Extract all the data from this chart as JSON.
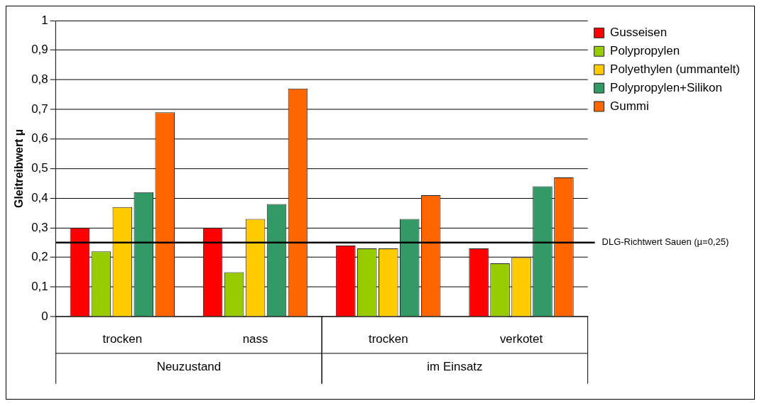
{
  "chart_data": {
    "type": "bar",
    "ylabel": "Gleitreibwert µ",
    "categories": [
      "trocken",
      "nass",
      "trocken",
      "verkotet"
    ],
    "series": [
      {
        "name": "Gusseisen",
        "color": "#ff0000",
        "values": [
          0.3,
          0.3,
          0.24,
          0.23
        ]
      },
      {
        "name": "Polypropylen",
        "color": "#99cc00",
        "values": [
          0.22,
          0.15,
          0.23,
          0.18
        ]
      },
      {
        "name": "Polyethylen (ummantelt)",
        "color": "#ffcc00",
        "values": [
          0.37,
          0.33,
          0.23,
          0.2
        ]
      },
      {
        "name": "Polypropylen+Silikon",
        "color": "#339966",
        "values": [
          0.42,
          0.38,
          0.33,
          0.44
        ]
      },
      {
        "name": "Gummi",
        "color": "#ff6600",
        "values": [
          0.69,
          0.77,
          0.41,
          0.47
        ]
      }
    ],
    "ylim": [
      0,
      1
    ],
    "yticks": [
      {
        "value": 0,
        "label": "0"
      },
      {
        "value": 0.1,
        "label": "0,1"
      },
      {
        "value": 0.2,
        "label": "0,2"
      },
      {
        "value": 0.3,
        "label": "0,3"
      },
      {
        "value": 0.4,
        "label": "0,4"
      },
      {
        "value": 0.5,
        "label": "0,5"
      },
      {
        "value": 0.6,
        "label": "0,6"
      },
      {
        "value": 0.7,
        "label": "0,7"
      },
      {
        "value": 0.8,
        "label": "0,8"
      },
      {
        "value": 0.9,
        "label": "0,9"
      },
      {
        "value": 1,
        "label": "1"
      }
    ],
    "grid": "y",
    "legend": "top right",
    "ref_lines": [
      {
        "axis": "y",
        "value": 0.25,
        "label": "DLG-Richtwert Sauen (µ=0,25)",
        "color": "#000000"
      }
    ],
    "annotations": [
      "Neuzustand",
      "im Einsatz"
    ]
  }
}
